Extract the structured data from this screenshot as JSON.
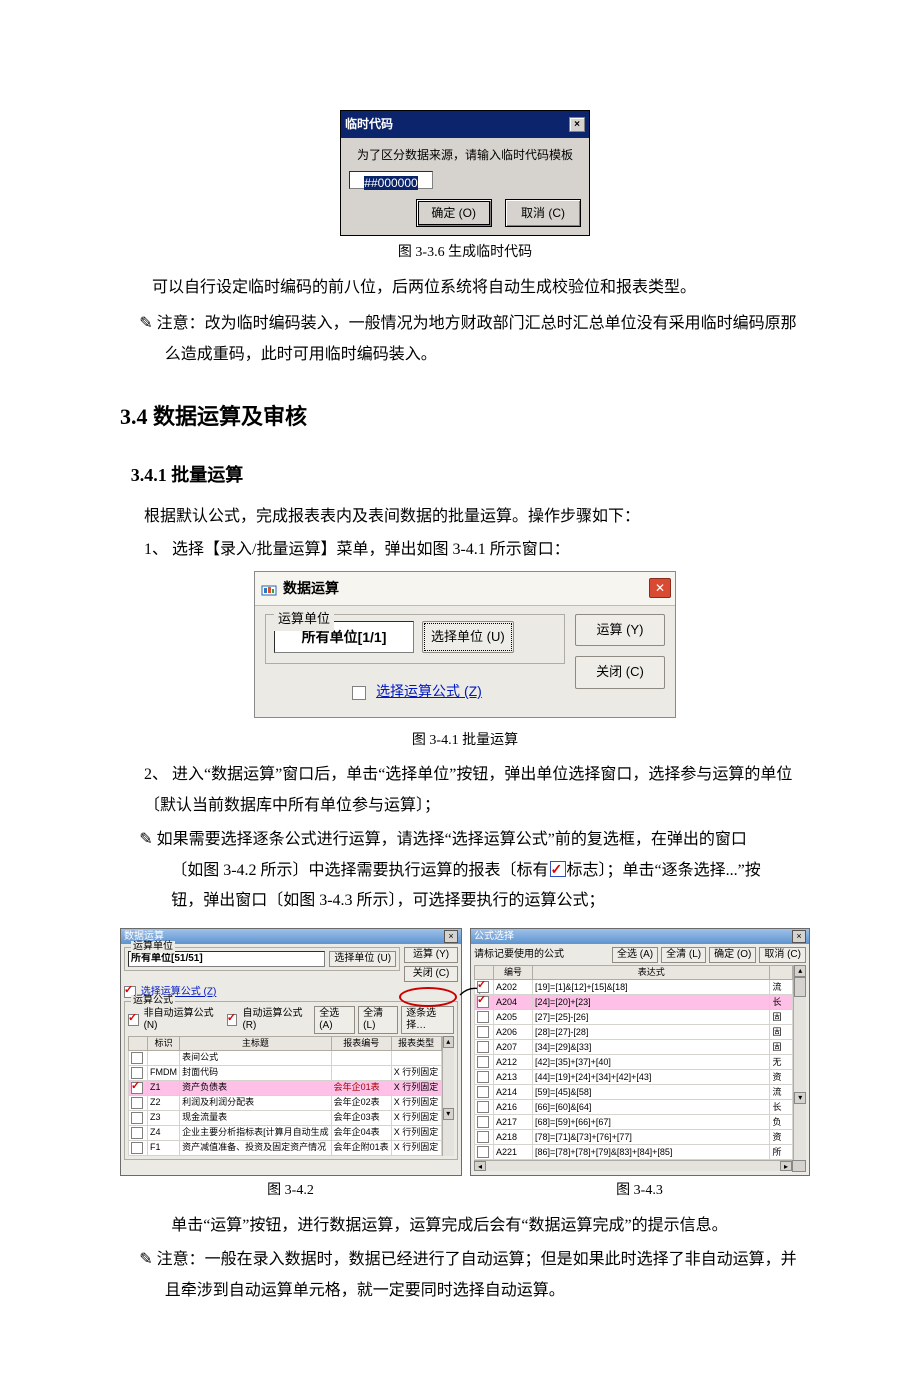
{
  "dlg1": {
    "title": "临时代码",
    "prompt": "为了区分数据来源，请输入临时代码模板",
    "input_value": "##000000",
    "ok": "确定 (O)",
    "cancel": "取消 (C)"
  },
  "cap1": "图 3-3.6 生成临时代码",
  "p1": "可以自行设定临时编码的前八位，后两位系统将自动生成校验位和报表类型。",
  "note1_lead": "✎ 注意：改为临时编码装入，一般情况为地方财政部门汇总时汇总单位没有采用临时编码原那么造成重码，此时可用临时编码装入。",
  "h2": "3.4 数据运算及审核",
  "h3": "3.4.1 批量运算",
  "p2": "根据默认公式，完成报表表内及表间数据的批量运算。操作步骤如下：",
  "li1": "1、 选择【录入/批量运算】菜单，弹出如图 3-4.1 所示窗口：",
  "dlg2": {
    "title": "数据运算",
    "group": "运算单位",
    "unit": "所有单位[1/1]",
    "select_unit": "选择单位 (U)",
    "calc": "运算 (Y)",
    "close": "关闭 (C)",
    "chk": "选择运算公式 (Z)"
  },
  "cap2": "图 3-4.1 批量运算",
  "li2": "2、 进入“数据运算”窗口后，单击“选择单位”按钮，弹出单位选择窗口，选择参与运算的单位〔默认当前数据库中所有单位参与运算〕；",
  "note2a": "✎ 如果需要选择逐条公式进行运算，请选择“选择运算公式”前的复选框，在弹出的窗口",
  "note2b": "〔如图 3-4.2 所示〕中选择需要执行运算的报表〔标有",
  "note2c": "标志〕；单击“逐条选择...”按",
  "note2d": "钮，弹出窗口〔如图 3-4.3 所示〕，可选择要执行的运算公式；",
  "dlg3": {
    "title": "数据运算",
    "unit_group": "运算单位",
    "unit": "所有单位[51/51]",
    "select_unit": "选择单位 (U)",
    "calc": "运算 (Y)",
    "close": "关闭 (C)",
    "chk_formula": "选择运算公式 (Z)",
    "formula_group": "运算公式",
    "chk_nonauto": "非自动运算公式 (N)",
    "chk_auto": "自动运算公式 (R)",
    "all": "全选 (A)",
    "none": "全清 (L)",
    "stepwise": "逐条选择…",
    "columns": [
      "标识",
      "主标题",
      "报表编号",
      "报表类型"
    ],
    "rows": [
      {
        "id": "",
        "title": "表间公式",
        "code": "",
        "type": "",
        "chk": false
      },
      {
        "id": "FMDM",
        "title": "封面代码",
        "code": "",
        "type": "X 行列固定",
        "chk": false
      },
      {
        "id": "Z1",
        "title": "资产负债表",
        "code": "会年企01表",
        "type": "X 行列固定",
        "chk": true,
        "pink": true
      },
      {
        "id": "Z2",
        "title": "利润及利润分配表",
        "code": "会年企02表",
        "type": "X 行列固定",
        "chk": false
      },
      {
        "id": "Z3",
        "title": "现金流量表",
        "code": "会年企03表",
        "type": "X 行列固定",
        "chk": false
      },
      {
        "id": "Z4",
        "title": "企业主要分析指标表[计算月自动生成",
        "code": "会年企04表",
        "type": "X 行列固定",
        "chk": false
      },
      {
        "id": "F1",
        "title": "资产减值准备、投资及固定资产情况",
        "code": "会年企附01表",
        "type": "X 行列固定",
        "chk": false
      }
    ]
  },
  "dlg4": {
    "title": "公式选择",
    "prompt": "请标记要使用的公式",
    "all": "全选 (A)",
    "none": "全清 (L)",
    "ok": "确定 (O)",
    "cancel": "取消 (C)",
    "columns": [
      "编号",
      "表达式"
    ],
    "rows": [
      {
        "id": "A202",
        "expr": "[19]=[1]&[12]+[15]&[18]",
        "chk": true,
        "note": "流"
      },
      {
        "id": "A204",
        "expr": "[24]=[20]+[23]",
        "chk": true,
        "pink": true,
        "note": "长"
      },
      {
        "id": "A205",
        "expr": "[27]=[25]-[26]",
        "chk": false,
        "note": "固"
      },
      {
        "id": "A206",
        "expr": "[28]=[27]-[28]",
        "chk": false,
        "note": "固"
      },
      {
        "id": "A207",
        "expr": "[34]=[29]&[33]",
        "chk": false,
        "note": "固"
      },
      {
        "id": "A212",
        "expr": "[42]=[35]+[37]+[40]",
        "chk": false,
        "note": "无"
      },
      {
        "id": "A213",
        "expr": "[44]=[19]+[24]+[34]+[42]+[43]",
        "chk": false,
        "note": "资"
      },
      {
        "id": "A214",
        "expr": "[59]=[45]&[58]",
        "chk": false,
        "note": "流"
      },
      {
        "id": "A216",
        "expr": "[66]=[60]&[64]",
        "chk": false,
        "note": "长"
      },
      {
        "id": "A217",
        "expr": "[68]=[59]+[66]+[67]",
        "chk": false,
        "note": "负"
      },
      {
        "id": "A218",
        "expr": "[78]=[71]&[73]+[76]+[77]",
        "chk": false,
        "note": "资"
      },
      {
        "id": "A221",
        "expr": "[86]=[78]+[78]+[79]&[83]+[84]+[85]",
        "chk": false,
        "note": "所"
      }
    ]
  },
  "cap3a": "图 3-4.2",
  "cap3b": "图 3-4.3",
  "p3": "单击“运算”按钮，进行数据运算，运算完成后会有“数据运算完成”的提示信息。",
  "note3": "✎ 注意：一般在录入数据时，数据已经进行了自动运算；但是如果此时选择了非自动运算，并且牵涉到自动运算单元格，就一定要同时选择自动运算。"
}
